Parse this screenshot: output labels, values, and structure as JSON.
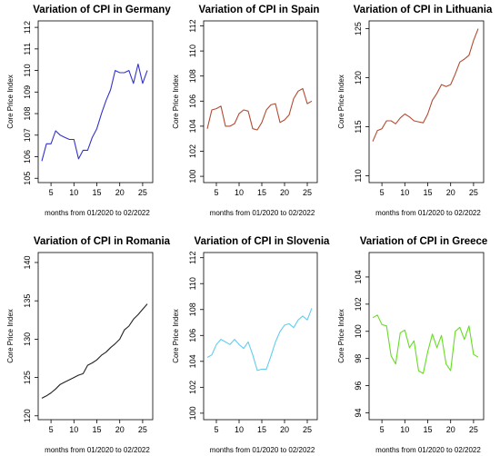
{
  "chart_data": [
    {
      "type": "line",
      "title": "Variation of CPI in Germany",
      "xlabel": "months from 01/2020 to 02/2022",
      "ylabel": "Core Price Index",
      "color": "#3333cc",
      "xlim": [
        2.2,
        27.2
      ],
      "ylim": [
        104.8,
        112.3
      ],
      "xticks": [
        5,
        10,
        15,
        20,
        25
      ],
      "yticks": [
        105,
        106,
        107,
        108,
        109,
        110,
        111,
        112
      ],
      "x": [
        3,
        4,
        5,
        6,
        7,
        8,
        9,
        10,
        11,
        12,
        13,
        14,
        15,
        16,
        17,
        18,
        19,
        20,
        21,
        22,
        23,
        24,
        25,
        26
      ],
      "y": [
        105.8,
        106.6,
        106.6,
        107.2,
        107.0,
        106.9,
        106.8,
        106.8,
        105.9,
        106.3,
        106.3,
        106.9,
        107.3,
        108.0,
        108.6,
        109.1,
        110.0,
        109.9,
        109.9,
        110.0,
        109.4,
        110.3,
        109.4,
        110.0
      ]
    },
    {
      "type": "line",
      "title": "Variation of CPI in Spain",
      "xlabel": "months from 01/2020 to 02/2022",
      "ylabel": "Core Price Index",
      "color": "#b34a33",
      "xlim": [
        2.2,
        27.2
      ],
      "ylim": [
        99.5,
        112.4
      ],
      "xticks": [
        5,
        10,
        15,
        20,
        25
      ],
      "yticks": [
        100,
        102,
        104,
        106,
        108,
        110,
        112
      ],
      "x": [
        3,
        4,
        5,
        6,
        7,
        8,
        9,
        10,
        11,
        12,
        13,
        14,
        15,
        16,
        17,
        18,
        19,
        20,
        21,
        22,
        23,
        24,
        25,
        26
      ],
      "y": [
        103.8,
        105.3,
        105.4,
        105.6,
        104.0,
        104.0,
        104.2,
        105.0,
        105.3,
        105.2,
        103.8,
        103.7,
        104.3,
        105.3,
        105.7,
        105.8,
        104.3,
        104.5,
        104.9,
        106.2,
        106.8,
        107.0,
        105.8,
        106.0
      ]
    },
    {
      "type": "line",
      "title": "Variation of CPI in Lithuania",
      "xlabel": "months from 01/2020 to 02/2022",
      "ylabel": "Core Price Index",
      "color": "#b34a33",
      "xlim": [
        2.2,
        27.2
      ],
      "ylim": [
        109.3,
        125.8
      ],
      "xticks": [
        5,
        10,
        15,
        20,
        25
      ],
      "yticks": [
        110,
        115,
        120,
        125
      ],
      "x": [
        3,
        4,
        5,
        6,
        7,
        8,
        9,
        10,
        11,
        12,
        13,
        14,
        15,
        16,
        17,
        18,
        19,
        20,
        21,
        22,
        23,
        24,
        25,
        26
      ],
      "y": [
        113.5,
        114.6,
        114.8,
        115.6,
        115.6,
        115.3,
        115.9,
        116.3,
        116.0,
        115.6,
        115.5,
        115.4,
        116.3,
        117.7,
        118.4,
        119.3,
        119.1,
        119.3,
        120.4,
        121.6,
        121.9,
        122.3,
        123.8,
        125.0
      ]
    },
    {
      "type": "line",
      "title": "Variation of CPI in Romania",
      "xlabel": "months from 01/2020 to 02/2022",
      "ylabel": "Core Price Index",
      "color": "#222222",
      "xlim": [
        2.2,
        27.2
      ],
      "ylim": [
        119.5,
        141.3
      ],
      "xticks": [
        5,
        10,
        15,
        20,
        25
      ],
      "yticks": [
        120,
        125,
        130,
        135,
        140
      ],
      "x": [
        3,
        4,
        5,
        6,
        7,
        8,
        9,
        10,
        11,
        12,
        13,
        14,
        15,
        16,
        17,
        18,
        19,
        20,
        21,
        22,
        23,
        24,
        25,
        26
      ],
      "y": [
        122.3,
        122.6,
        123.0,
        123.5,
        124.1,
        124.4,
        124.7,
        125.0,
        125.3,
        125.5,
        126.6,
        126.9,
        127.3,
        127.9,
        128.3,
        128.9,
        129.4,
        130.0,
        131.2,
        131.7,
        132.6,
        133.2,
        133.9,
        134.6
      ]
    },
    {
      "type": "line",
      "title": "Variation of CPI in Slovenia",
      "xlabel": "months from 01/2020 to 02/2022",
      "ylabel": "Core Price Index",
      "color": "#66ccee",
      "xlim": [
        2.2,
        27.2
      ],
      "ylim": [
        99.5,
        112.4
      ],
      "xticks": [
        5,
        10,
        15,
        20,
        25
      ],
      "yticks": [
        100,
        102,
        104,
        106,
        108,
        110,
        112
      ],
      "x": [
        3,
        4,
        5,
        6,
        7,
        8,
        9,
        10,
        11,
        12,
        13,
        14,
        15,
        16,
        17,
        18,
        19,
        20,
        21,
        22,
        23,
        24,
        25,
        26
      ],
      "y": [
        104.3,
        104.5,
        105.3,
        105.7,
        105.5,
        105.3,
        105.7,
        105.3,
        105.0,
        105.5,
        104.5,
        103.3,
        103.4,
        103.4,
        104.4,
        105.5,
        106.3,
        106.8,
        106.9,
        106.6,
        107.2,
        107.5,
        107.2,
        108.1
      ]
    },
    {
      "type": "line",
      "title": "Variation of CPI in Greece",
      "xlabel": "months from 01/2020 to 02/2022",
      "ylabel": "Core Price Index",
      "color": "#66dd22",
      "xlim": [
        2.2,
        27.2
      ],
      "ylim": [
        93.5,
        105.8
      ],
      "xticks": [
        5,
        10,
        15,
        20,
        25
      ],
      "yticks": [
        94,
        96,
        98,
        100,
        102,
        104
      ],
      "x": [
        3,
        4,
        5,
        6,
        7,
        8,
        9,
        10,
        11,
        12,
        13,
        14,
        15,
        16,
        17,
        18,
        19,
        20,
        21,
        22,
        23,
        24,
        25,
        26
      ],
      "y": [
        101.0,
        101.2,
        100.5,
        100.4,
        98.2,
        97.6,
        99.9,
        100.1,
        98.8,
        99.3,
        97.1,
        96.9,
        98.5,
        99.8,
        98.8,
        99.7,
        97.6,
        97.1,
        100.0,
        100.3,
        99.4,
        100.4,
        98.3,
        98.1
      ]
    }
  ]
}
